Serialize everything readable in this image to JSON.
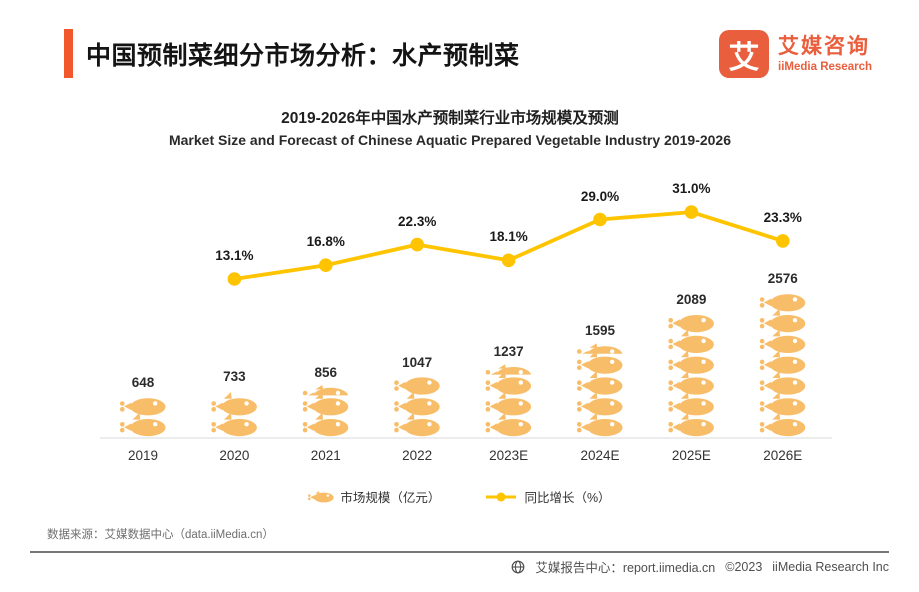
{
  "header": {
    "title": "中国预制菜细分市场分析：水产预制菜",
    "accent_color": "#F1592C"
  },
  "logo": {
    "icon_char": "艾",
    "name_cn": "艾媒咨询",
    "name_en": "iiMedia Research",
    "color": "#E95E3C"
  },
  "chart_data": {
    "type": "bar",
    "title": "2019-2026年中国水产预制菜行业市场规模及预测",
    "subtitle": "Market Size and Forecast of Chinese Aquatic Prepared Vegetable Industry 2019-2026",
    "categories": [
      "2019",
      "2020",
      "2021",
      "2022",
      "2023E",
      "2024E",
      "2025E",
      "2026E"
    ],
    "series": [
      {
        "name": "市场规模（亿元）",
        "type": "pictogram-bar",
        "unit": "亿元",
        "color": "#F8BD68",
        "values": [
          648,
          733,
          856,
          1047,
          1237,
          1595,
          2089,
          2576
        ],
        "fish_units": [
          2,
          2.1,
          2.5,
          3,
          3.5,
          4.5,
          6,
          7
        ]
      },
      {
        "name": "同比增长（%）",
        "type": "line",
        "unit": "%",
        "color": "#FFC400",
        "values": [
          null,
          13.1,
          16.8,
          22.3,
          18.1,
          29.0,
          31.0,
          23.3
        ],
        "labels": [
          "",
          "13.1%",
          "16.8%",
          "22.3%",
          "18.1%",
          "29.0%",
          "31.0%",
          "23.3%"
        ]
      }
    ],
    "legend_position": "bottom",
    "grid": false
  },
  "source": {
    "text": "数据来源：艾媒数据中心（data.iiMedia.cn）"
  },
  "footer": {
    "report_center": "艾媒报告中心：report.iimedia.cn",
    "copyright": "©2023",
    "company": "iiMedia Research Inc"
  }
}
